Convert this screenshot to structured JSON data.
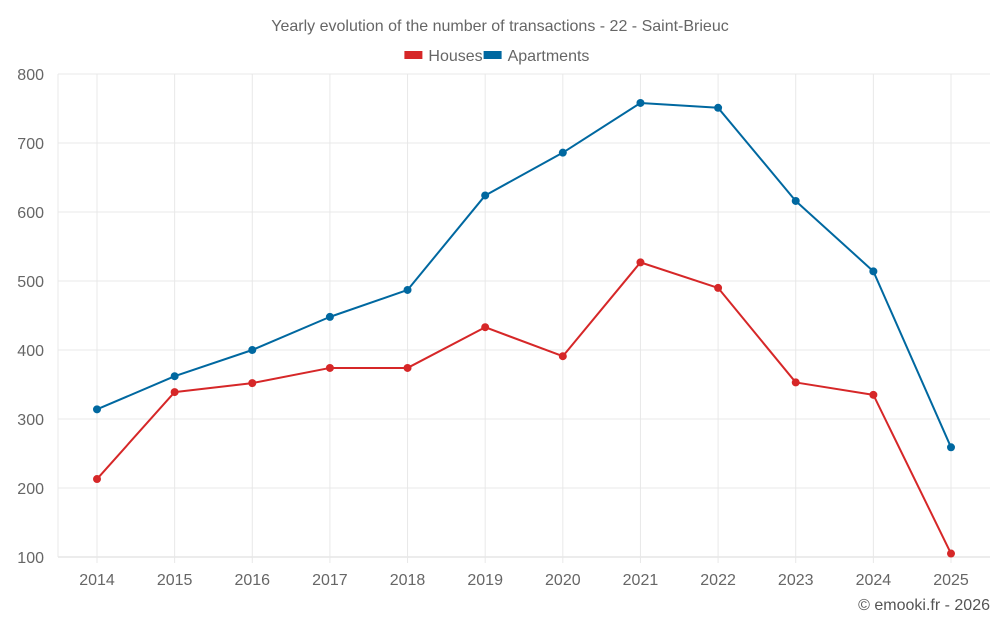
{
  "chart_data": {
    "type": "line",
    "title": "Yearly evolution of the number of transactions - 22 - Saint-Brieuc",
    "xlabel": "",
    "ylabel": "",
    "categories": [
      "2014",
      "2015",
      "2016",
      "2017",
      "2018",
      "2019",
      "2020",
      "2021",
      "2022",
      "2023",
      "2024",
      "2025"
    ],
    "ylim": [
      100,
      800
    ],
    "yticks": [
      100,
      200,
      300,
      400,
      500,
      600,
      700,
      800
    ],
    "grid": true,
    "legend_position": "top-center",
    "series": [
      {
        "name": "Houses",
        "color": "#d62728",
        "values": [
          213,
          339,
          352,
          374,
          374,
          433,
          391,
          527,
          490,
          353,
          335,
          105
        ]
      },
      {
        "name": "Apartments",
        "color": "#0068a0",
        "values": [
          314,
          362,
          400,
          448,
          487,
          624,
          686,
          758,
          751,
          616,
          514,
          259
        ]
      }
    ]
  },
  "credit": "© emooki.fr - 2026"
}
